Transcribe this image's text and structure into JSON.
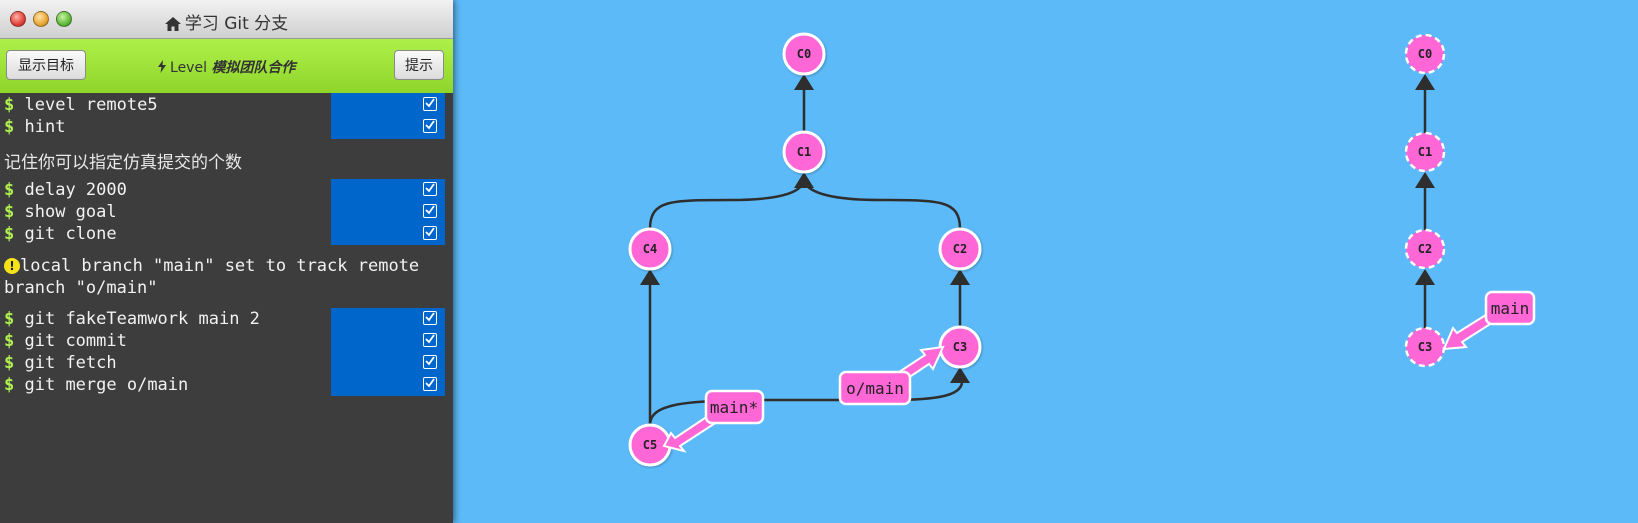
{
  "window": {
    "title": "学习 Git 分支"
  },
  "levelbar": {
    "show_goal_label": "显示目标",
    "level_prefix": "Level",
    "level_name": "模拟团队合作",
    "hint_label": "提示"
  },
  "terminal": {
    "commands": [
      {
        "text": "level remote5",
        "done": true
      },
      {
        "text": "hint",
        "done": true
      },
      {
        "text": "delay 2000",
        "done": true
      },
      {
        "text": "show goal",
        "done": true
      },
      {
        "text": "git clone",
        "done": true
      },
      {
        "text": "git fakeTeamwork main 2",
        "done": true
      },
      {
        "text": "git commit",
        "done": true
      },
      {
        "text": "git fetch",
        "done": true
      },
      {
        "text": "git merge o/main",
        "done": true
      }
    ],
    "hint_message": "记住你可以指定仿真提交的个数",
    "warning_line1": "local branch \"main\" set to track remote",
    "warning_line2": "branch \"o/main\""
  },
  "tree": {
    "nodes": [
      "C0",
      "C1",
      "C2",
      "C3",
      "C4",
      "C5"
    ],
    "edges": [
      [
        "C1",
        "C0"
      ],
      [
        "C2",
        "C1"
      ],
      [
        "C4",
        "C1"
      ],
      [
        "C3",
        "C2"
      ],
      [
        "C5",
        "C4"
      ],
      [
        "C5",
        "C3"
      ]
    ],
    "branches": [
      {
        "name": "main*",
        "target": "C5"
      },
      {
        "name": "o/main",
        "target": "C3"
      }
    ]
  },
  "goal_tree": {
    "nodes": [
      "C0",
      "C1",
      "C2",
      "C3"
    ],
    "edges": [
      [
        "C1",
        "C0"
      ],
      [
        "C2",
        "C1"
      ],
      [
        "C3",
        "C2"
      ]
    ],
    "branches": [
      {
        "name": "main",
        "target": "C3"
      }
    ]
  },
  "colors": {
    "background": "#5cbaf8",
    "node_fill": "#ff66d6",
    "branch_fill": "#ff66d6",
    "edge": "#2e2e2e",
    "terminal_bg": "#3d3d3d",
    "command_bg": "#0066cc",
    "prompt": "#b0f050",
    "level_bar": "#9be13a"
  }
}
